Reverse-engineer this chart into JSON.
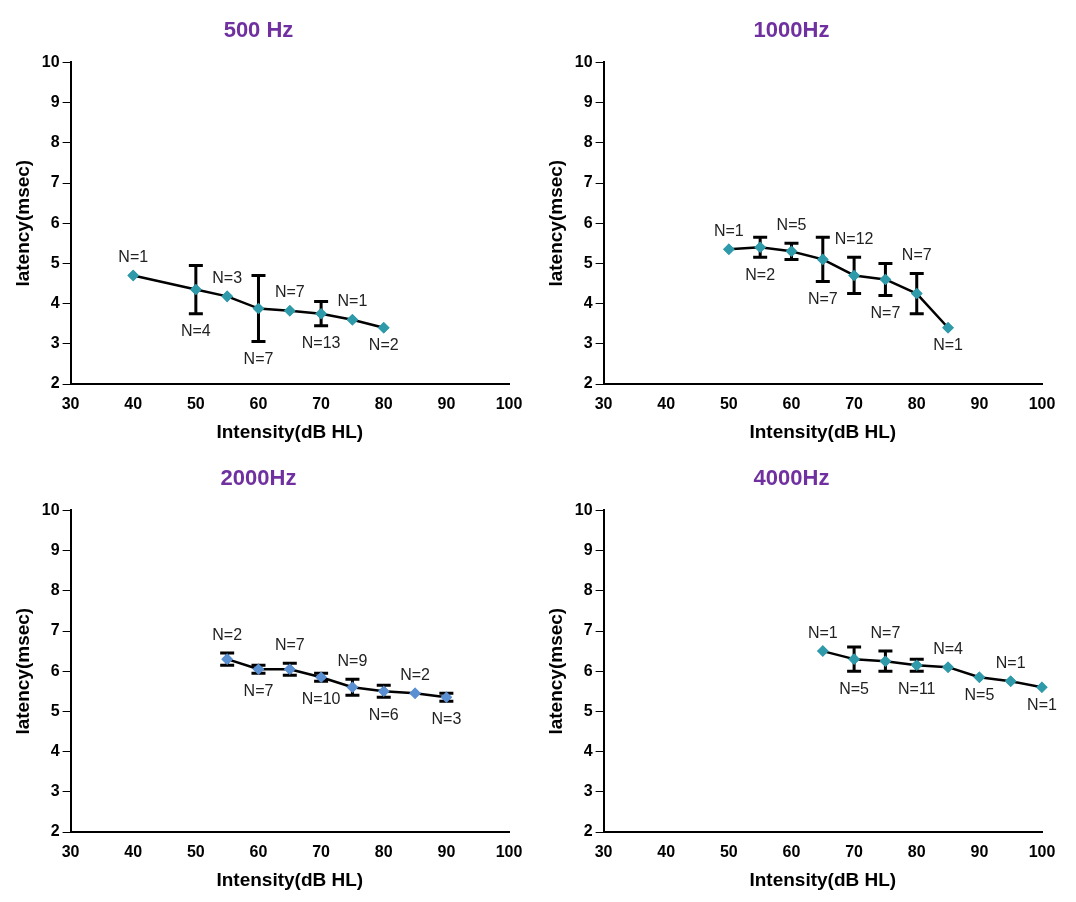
{
  "chart_data": [
    {
      "type": "line",
      "title": "500 Hz",
      "xlabel": "Intensity(dB HL)",
      "ylabel": "latency(msec)",
      "x": [
        40,
        50,
        55,
        60,
        65,
        70,
        75,
        80
      ],
      "series": [
        {
          "color": "#2e9aaa",
          "values": [
            4.7,
            4.35,
            4.18,
            3.88,
            3.82,
            3.75,
            3.6,
            3.4
          ],
          "errors": [
            null,
            0.6,
            null,
            0.82,
            null,
            0.3,
            null,
            null
          ]
        }
      ],
      "annotations": [
        {
          "text": "N=1",
          "x": 40,
          "y": 4.7
        },
        {
          "text": "N=4",
          "x": 50,
          "y": 4.35
        },
        {
          "text": "N=3",
          "x": 55,
          "y": 4.18
        },
        {
          "text": "N=7",
          "x": 60,
          "y": 3.88
        },
        {
          "text": "N=7",
          "x": 65,
          "y": 3.82
        },
        {
          "text": "N=13",
          "x": 70,
          "y": 3.75
        },
        {
          "text": "N=1",
          "x": 75,
          "y": 3.6
        },
        {
          "text": "N=2",
          "x": 80,
          "y": 3.4
        }
      ],
      "xlim": [
        30,
        100
      ],
      "xticks": [
        30,
        40,
        50,
        60,
        70,
        80,
        90,
        100
      ],
      "ylim": [
        2,
        10
      ],
      "yticks": [
        2,
        3,
        4,
        5,
        6,
        7,
        8,
        9,
        10
      ],
      "grid": false,
      "legend": false,
      "marker": "diamond",
      "line_style": "solid"
    },
    {
      "type": "line",
      "title": "1000Hz",
      "xlabel": "Intensity(dB HL)",
      "ylabel": "latency(msec)",
      "x": [
        50,
        55,
        60,
        65,
        70,
        75,
        80,
        85
      ],
      "series": [
        {
          "color": "#2e9aaa",
          "values": [
            5.35,
            5.4,
            5.3,
            5.1,
            4.7,
            4.6,
            4.25,
            3.4
          ],
          "errors": [
            null,
            0.25,
            0.2,
            0.55,
            0.45,
            0.4,
            0.5,
            null
          ]
        }
      ],
      "annotations": [
        {
          "text": "N=1",
          "x": 50,
          "y": 5.35
        },
        {
          "text": "N=2",
          "x": 55,
          "y": 5.4
        },
        {
          "text": "N=5",
          "x": 60,
          "y": 5.3
        },
        {
          "text": "N=7",
          "x": 65,
          "y": 5.1
        },
        {
          "text": "N=12",
          "x": 70,
          "y": 4.7
        },
        {
          "text": "N=7",
          "x": 75,
          "y": 4.6
        },
        {
          "text": "N=7",
          "x": 80,
          "y": 4.25
        },
        {
          "text": "N=1",
          "x": 85,
          "y": 3.4
        }
      ],
      "xlim": [
        30,
        100
      ],
      "xticks": [
        30,
        40,
        50,
        60,
        70,
        80,
        90,
        100
      ],
      "ylim": [
        2,
        10
      ],
      "yticks": [
        2,
        3,
        4,
        5,
        6,
        7,
        8,
        9,
        10
      ],
      "grid": false,
      "legend": false,
      "marker": "diamond",
      "line_style": "solid"
    },
    {
      "type": "line",
      "title": "2000Hz",
      "xlabel": "Intensity(dB HL)",
      "ylabel": "latency(msec)",
      "x": [
        55,
        60,
        65,
        70,
        75,
        80,
        85,
        90
      ],
      "series": [
        {
          "color": "#5a90d2",
          "values": [
            6.3,
            6.05,
            6.05,
            5.85,
            5.6,
            5.5,
            5.45,
            5.35
          ],
          "errors": [
            0.15,
            0.1,
            0.15,
            0.1,
            0.2,
            0.15,
            null,
            0.1
          ]
        }
      ],
      "annotations": [
        {
          "text": "N=2",
          "x": 55,
          "y": 6.3
        },
        {
          "text": "N=7",
          "x": 60,
          "y": 6.05
        },
        {
          "text": "N=7",
          "x": 65,
          "y": 6.05
        },
        {
          "text": "N=10",
          "x": 70,
          "y": 5.85
        },
        {
          "text": "N=9",
          "x": 75,
          "y": 5.6
        },
        {
          "text": "N=6",
          "x": 80,
          "y": 5.5
        },
        {
          "text": "N=2",
          "x": 85,
          "y": 5.45
        },
        {
          "text": "N=3",
          "x": 90,
          "y": 5.35
        }
      ],
      "xlim": [
        30,
        100
      ],
      "xticks": [
        30,
        40,
        50,
        60,
        70,
        80,
        90,
        100
      ],
      "ylim": [
        2,
        10
      ],
      "yticks": [
        2,
        3,
        4,
        5,
        6,
        7,
        8,
        9,
        10
      ],
      "grid": false,
      "legend": false,
      "marker": "diamond",
      "line_style": "solid"
    },
    {
      "type": "line",
      "title": "4000Hz",
      "xlabel": "Intensity(dB HL)",
      "ylabel": "latency(msec)",
      "x": [
        65,
        70,
        75,
        80,
        85,
        90,
        95,
        100
      ],
      "series": [
        {
          "color": "#2e9aaa",
          "values": [
            6.5,
            6.3,
            6.25,
            6.15,
            6.1,
            5.85,
            5.75,
            5.6
          ],
          "errors": [
            null,
            0.3,
            0.25,
            0.15,
            null,
            null,
            null,
            null
          ]
        }
      ],
      "annotations": [
        {
          "text": "N=1",
          "x": 65,
          "y": 6.5
        },
        {
          "text": "N=5",
          "x": 70,
          "y": 6.3
        },
        {
          "text": "N=7",
          "x": 75,
          "y": 6.25
        },
        {
          "text": "N=11",
          "x": 80,
          "y": 6.15
        },
        {
          "text": "N=4",
          "x": 85,
          "y": 6.1
        },
        {
          "text": "N=5",
          "x": 90,
          "y": 5.85
        },
        {
          "text": "N=1",
          "x": 95,
          "y": 5.75
        },
        {
          "text": "N=1",
          "x": 100,
          "y": 5.6
        }
      ],
      "xlim": [
        30,
        100
      ],
      "xticks": [
        30,
        40,
        50,
        60,
        70,
        80,
        90,
        100
      ],
      "ylim": [
        2,
        10
      ],
      "yticks": [
        2,
        3,
        4,
        5,
        6,
        7,
        8,
        9,
        10
      ],
      "grid": false,
      "legend": false,
      "marker": "diamond",
      "line_style": "solid"
    }
  ]
}
